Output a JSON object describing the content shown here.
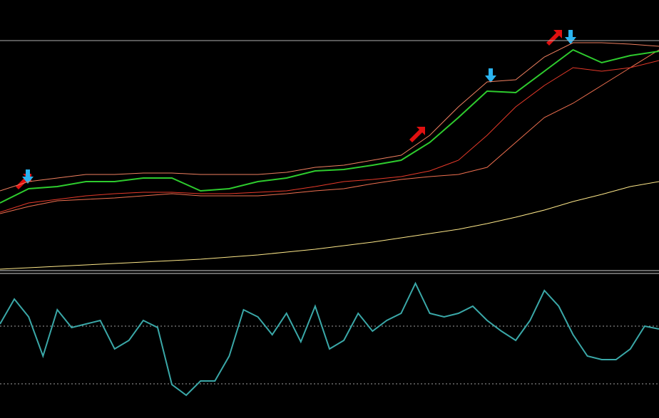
{
  "chart_data": [
    {
      "type": "line",
      "ylim": [
        0,
        380
      ],
      "levels": [
        323
      ],
      "level_color": "#b0b0b0",
      "series": [
        {
          "color": "#ffe98a",
          "values": [
            2,
            4,
            6,
            8,
            10,
            12,
            14,
            16,
            19,
            22,
            26,
            30,
            35,
            40,
            46,
            52,
            58,
            66,
            75,
            85,
            97,
            107,
            118,
            125
          ]
        },
        {
          "color": "#f07050",
          "values": [
            80,
            90,
            98,
            100,
            102,
            105,
            108,
            105,
            105,
            105,
            108,
            112,
            115,
            122,
            128,
            132,
            135,
            145,
            180,
            215,
            235,
            260,
            285,
            310
          ]
        },
        {
          "color": "#e83a2a",
          "values": [
            82,
            95,
            100,
            105,
            108,
            110,
            110,
            108,
            108,
            110,
            112,
            118,
            125,
            128,
            132,
            140,
            155,
            190,
            230,
            260,
            285,
            280,
            285,
            295
          ]
        },
        {
          "color": "#f08060",
          "values": [
            112,
            125,
            130,
            135,
            135,
            137,
            137,
            135,
            135,
            135,
            138,
            145,
            148,
            155,
            162,
            190,
            230,
            265,
            268,
            300,
            320,
            320,
            318,
            315
          ]
        },
        {
          "color": "#2ecc2e",
          "values": [
            95,
            115,
            118,
            125,
            125,
            130,
            130,
            112,
            115,
            125,
            130,
            140,
            142,
            148,
            155,
            180,
            215,
            252,
            250,
            280,
            310,
            292,
            302,
            308
          ]
        }
      ]
    },
    {
      "type": "line",
      "ylim": [
        0,
        202
      ],
      "levels": [
        129,
        48
      ],
      "level_color": "#a0a0a0",
      "series": [
        {
          "color": "#3aa8a8",
          "values": [
            132,
            167,
            142,
            87,
            152,
            127,
            132,
            137,
            97,
            109,
            137,
            127,
            47,
            32,
            52,
            52,
            87,
            152,
            142,
            117,
            147,
            107,
            157,
            97,
            109,
            147,
            122,
            137,
            147,
            189,
            147,
            142,
            147,
            157,
            137,
            122,
            109,
            137,
            179,
            157,
            117,
            87,
            82,
            82,
            97,
            129,
            125
          ]
        }
      ]
    }
  ]
}
